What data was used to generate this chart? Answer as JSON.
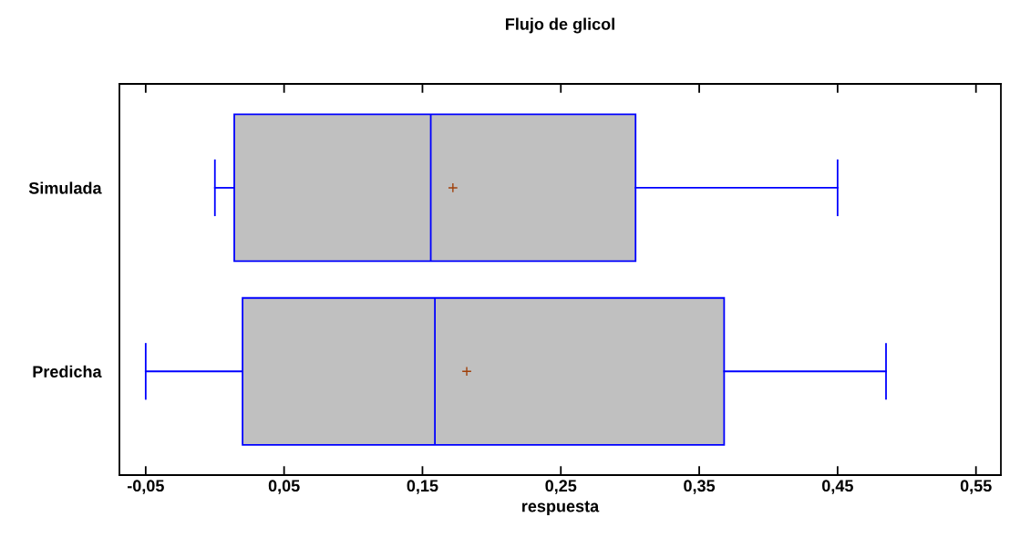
{
  "chart_data": {
    "type": "box",
    "orientation": "horizontal",
    "title": "Flujo de glicol",
    "xlabel": "respuesta",
    "categories": [
      "Simulada",
      "Predicha"
    ],
    "boxes": [
      {
        "low": 0.0,
        "q1": 0.014,
        "median": 0.156,
        "q3": 0.304,
        "high": 0.45,
        "mean": 0.172
      },
      {
        "low": -0.05,
        "q1": 0.02,
        "median": 0.159,
        "q3": 0.368,
        "high": 0.485,
        "mean": 0.182
      }
    ],
    "color": "#c0c0c0",
    "xlim": [
      -0.069,
      0.568
    ],
    "xticks": [
      {
        "value": -0.05,
        "label": "-0,05"
      },
      {
        "value": 0.05,
        "label": "0,05"
      },
      {
        "value": 0.15,
        "label": "0,15"
      },
      {
        "value": 0.25,
        "label": "0,25"
      },
      {
        "value": 0.35,
        "label": "0,35"
      },
      {
        "value": 0.45,
        "label": "0,45"
      },
      {
        "value": 0.55,
        "label": "0,55"
      }
    ],
    "grid": false,
    "marker": "cross"
  }
}
